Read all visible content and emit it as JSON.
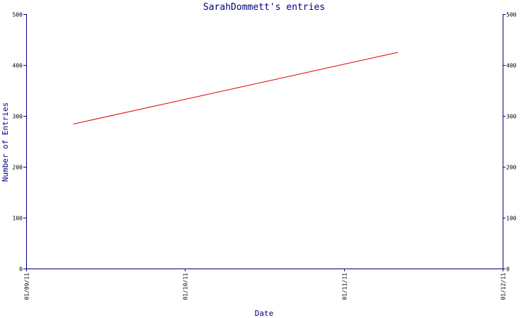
{
  "chart_data": {
    "type": "line",
    "title": "SarahDommett's entries",
    "xlabel": "Date",
    "ylabel": "Number of Entries",
    "x_ticks": [
      "01/09/11",
      "01/10/11",
      "01/11/11",
      "01/12/11"
    ],
    "y_ticks": [
      "0",
      "100",
      "200",
      "300",
      "400",
      "500"
    ],
    "ylim": [
      0,
      500
    ],
    "xlim": [
      "2011-09-01",
      "2011-12-01"
    ],
    "y_axis_sides": [
      "left",
      "right"
    ],
    "grid": false,
    "legend": "none",
    "series": [
      {
        "color": "#dd0000",
        "x": [
          "2011-09-10",
          "2011-11-11"
        ],
        "y": [
          284,
          425
        ]
      }
    ],
    "colors": {
      "axis": "#000080",
      "text": "#000080",
      "background": "#ffffff"
    }
  }
}
